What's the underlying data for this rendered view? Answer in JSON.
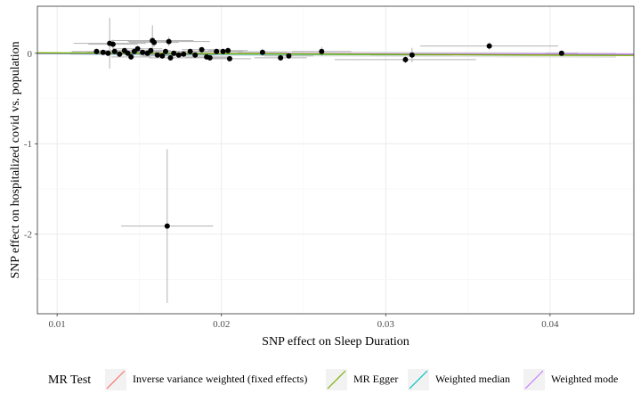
{
  "chart_data": {
    "type": "scatter",
    "xlabel": "SNP effect on Sleep Duration",
    "ylabel": "SNP effect on hospitalized covid vs. population",
    "xlim": [
      0.0088,
      0.0451
    ],
    "ylim": [
      -2.88,
      0.52
    ],
    "x_ticks": [
      0.01,
      0.02,
      0.03,
      0.04
    ],
    "x_tick_labels": [
      "0.01",
      "0.02",
      "0.03",
      "0.04"
    ],
    "y_ticks": [
      0,
      -1,
      -2
    ],
    "y_tick_labels": [
      "0",
      "-1",
      "-2"
    ],
    "grid": true,
    "legend_position": "bottom",
    "legend": {
      "title": "MR Test",
      "items": [
        {
          "label": "Inverse variance weighted (fixed effects)",
          "color": "#F8766D"
        },
        {
          "label": "MR Egger",
          "color": "#7CAE00"
        },
        {
          "label": "Weighted median",
          "color": "#00BFC4"
        },
        {
          "label": "Weighted mode",
          "color": "#C77CFF"
        }
      ]
    },
    "lines": [
      {
        "test": "Inverse variance weighted (fixed effects)",
        "color": "#F8766D",
        "intercept": 0,
        "slope": -0.3
      },
      {
        "test": "Weighted median",
        "color": "#00BFC4",
        "intercept": 0,
        "slope": -0.45
      },
      {
        "test": "Weighted mode",
        "color": "#C77CFF",
        "intercept": 0,
        "slope": -0.2
      },
      {
        "test": "MR Egger",
        "color": "#7CAE00",
        "intercept": 0.012,
        "slope": -0.8
      }
    ],
    "points": [
      {
        "x": 0.0167,
        "y": -1.91,
        "xerr": 0.0028,
        "yerr": 0.85
      },
      {
        "x": 0.0132,
        "y": 0.11,
        "xerr": 0.0022,
        "yerr": 0.28
      },
      {
        "x": 0.0134,
        "y": 0.1,
        "xerr": 0.0015,
        "yerr": 0.05
      },
      {
        "x": 0.0158,
        "y": 0.14,
        "xerr": 0.0025,
        "yerr": 0.17
      },
      {
        "x": 0.0159,
        "y": 0.12,
        "xerr": 0.0015,
        "yerr": 0.05
      },
      {
        "x": 0.0168,
        "y": 0.13,
        "xerr": 0.0025,
        "yerr": 0.05
      },
      {
        "x": 0.0124,
        "y": 0.02,
        "xerr": 0.0015,
        "yerr": 0.03
      },
      {
        "x": 0.0128,
        "y": 0.01,
        "xerr": 0.001,
        "yerr": 0.03
      },
      {
        "x": 0.0131,
        "y": 0.0,
        "xerr": 0.0012,
        "yerr": 0.03
      },
      {
        "x": 0.0135,
        "y": 0.02,
        "xerr": 0.0011,
        "yerr": 0.03
      },
      {
        "x": 0.0138,
        "y": -0.01,
        "xerr": 0.0012,
        "yerr": 0.03
      },
      {
        "x": 0.0141,
        "y": 0.03,
        "xerr": 0.0015,
        "yerr": 0.03
      },
      {
        "x": 0.0143,
        "y": 0.0,
        "xerr": 0.0011,
        "yerr": 0.03
      },
      {
        "x": 0.0145,
        "y": -0.04,
        "xerr": 0.0012,
        "yerr": 0.03
      },
      {
        "x": 0.0147,
        "y": 0.02,
        "xerr": 0.0012,
        "yerr": 0.03
      },
      {
        "x": 0.0149,
        "y": 0.05,
        "xerr": 0.0015,
        "yerr": 0.03
      },
      {
        "x": 0.0152,
        "y": 0.01,
        "xerr": 0.0011,
        "yerr": 0.03
      },
      {
        "x": 0.0155,
        "y": 0.0,
        "xerr": 0.0012,
        "yerr": 0.03
      },
      {
        "x": 0.0157,
        "y": 0.03,
        "xerr": 0.0012,
        "yerr": 0.03
      },
      {
        "x": 0.0161,
        "y": -0.02,
        "xerr": 0.0011,
        "yerr": 0.03
      },
      {
        "x": 0.0164,
        "y": -0.03,
        "xerr": 0.0012,
        "yerr": 0.03
      },
      {
        "x": 0.0166,
        "y": 0.02,
        "xerr": 0.0012,
        "yerr": 0.03
      },
      {
        "x": 0.0169,
        "y": -0.05,
        "xerr": 0.0013,
        "yerr": 0.03
      },
      {
        "x": 0.0171,
        "y": 0.0,
        "xerr": 0.0011,
        "yerr": 0.03
      },
      {
        "x": 0.0174,
        "y": -0.02,
        "xerr": 0.0012,
        "yerr": 0.03
      },
      {
        "x": 0.0177,
        "y": -0.01,
        "xerr": 0.0012,
        "yerr": 0.03
      },
      {
        "x": 0.0181,
        "y": 0.02,
        "xerr": 0.0013,
        "yerr": 0.03
      },
      {
        "x": 0.0184,
        "y": -0.02,
        "xerr": 0.0012,
        "yerr": 0.03
      },
      {
        "x": 0.0188,
        "y": 0.04,
        "xerr": 0.0012,
        "yerr": 0.03
      },
      {
        "x": 0.0191,
        "y": -0.04,
        "xerr": 0.0013,
        "yerr": 0.03
      },
      {
        "x": 0.0193,
        "y": -0.05,
        "xerr": 0.0012,
        "yerr": 0.03
      },
      {
        "x": 0.0197,
        "y": 0.02,
        "xerr": 0.0013,
        "yerr": 0.03
      },
      {
        "x": 0.0201,
        "y": 0.02,
        "xerr": 0.0012,
        "yerr": 0.03
      },
      {
        "x": 0.0204,
        "y": 0.03,
        "xerr": 0.0012,
        "yerr": 0.03
      },
      {
        "x": 0.0205,
        "y": -0.06,
        "xerr": 0.0013,
        "yerr": 0.03
      },
      {
        "x": 0.0225,
        "y": 0.01,
        "xerr": 0.0015,
        "yerr": 0.04
      },
      {
        "x": 0.0236,
        "y": -0.05,
        "xerr": 0.0016,
        "yerr": 0.03
      },
      {
        "x": 0.0241,
        "y": -0.03,
        "xerr": 0.0015,
        "yerr": 0.03
      },
      {
        "x": 0.0261,
        "y": 0.02,
        "xerr": 0.0018,
        "yerr": 0.05
      },
      {
        "x": 0.0312,
        "y": -0.07,
        "xerr": 0.0043,
        "yerr": 0.04
      },
      {
        "x": 0.0316,
        "y": -0.02,
        "xerr": 0.0025,
        "yerr": 0.08
      },
      {
        "x": 0.0363,
        "y": 0.08,
        "xerr": 0.0042,
        "yerr": 0.04
      },
      {
        "x": 0.0407,
        "y": 0.0,
        "xerr": 0.001,
        "yerr": 0.02
      }
    ]
  }
}
